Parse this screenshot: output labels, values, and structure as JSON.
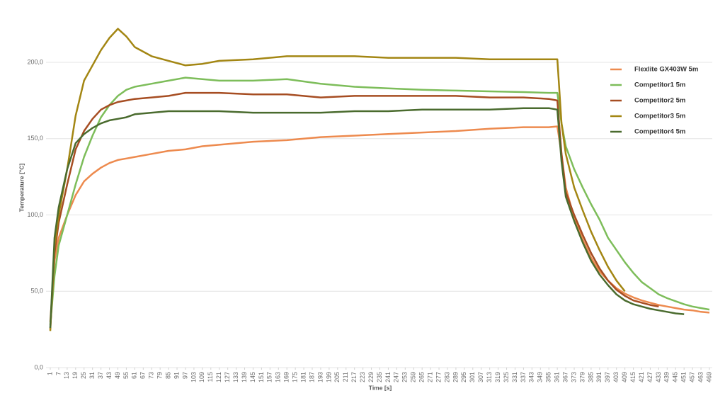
{
  "chart_data": {
    "type": "line",
    "x_label": "Time [s]",
    "y_label": "Temperature [°C]",
    "x": [
      1,
      4,
      7,
      13,
      19,
      25,
      31,
      37,
      43,
      49,
      55,
      61,
      73,
      85,
      97,
      109,
      121,
      145,
      169,
      193,
      217,
      241,
      265,
      289,
      313,
      337,
      355,
      361,
      364,
      367,
      373,
      379,
      385,
      391,
      397,
      403,
      409,
      415,
      421,
      427,
      433,
      439,
      445,
      451,
      457,
      463,
      469
    ],
    "series": [
      {
        "name": "Flexlite GX403W 5m",
        "color": "#ed8a4e",
        "values": [
          30,
          70,
          85,
          100,
          113,
          122,
          127,
          131,
          134,
          136,
          137,
          138,
          140,
          142,
          143,
          145,
          146,
          148,
          149,
          151,
          152,
          153,
          154,
          155,
          156.5,
          157.5,
          157.5,
          158,
          140,
          118,
          98,
          84,
          72,
          63,
          57,
          52,
          48.5,
          46,
          44,
          42.5,
          41,
          40,
          39,
          38,
          37.5,
          36.5,
          36
        ]
      },
      {
        "name": "Competitor1 5m",
        "color": "#7dbd5a",
        "values": [
          28,
          60,
          80,
          100,
          120,
          138,
          152,
          164,
          172,
          178,
          182,
          184,
          186,
          188,
          190,
          189,
          188,
          188,
          189,
          186,
          184,
          183,
          182,
          181.5,
          181,
          180.5,
          180,
          180,
          160,
          145,
          130,
          118,
          107,
          97,
          85,
          77,
          69,
          62,
          56,
          52,
          48,
          45.5,
          43.5,
          41.5,
          40,
          39,
          38
        ]
      },
      {
        "name": "Competitor2 5m",
        "color": "#a64d22",
        "values": [
          25,
          75,
          95,
          120,
          143,
          155,
          163,
          169,
          172,
          174,
          175,
          176,
          177,
          178,
          180,
          180,
          180,
          179,
          179,
          177,
          178,
          178,
          178,
          178,
          177,
          177,
          176,
          175,
          140,
          115,
          100,
          87,
          75,
          65,
          57,
          51,
          47,
          44,
          42.5,
          41,
          40,
          null,
          null,
          null,
          null,
          null,
          null
        ]
      },
      {
        "name": "Competitor3 5m",
        "color": "#a38613",
        "values": [
          24,
          80,
          100,
          130,
          165,
          188,
          198,
          208,
          216,
          222,
          217,
          210,
          204,
          201,
          198,
          199,
          201,
          202,
          204,
          204,
          204,
          203,
          203,
          203,
          202,
          202,
          202,
          202,
          160,
          140,
          118,
          103,
          89,
          77,
          66,
          57,
          50,
          null,
          null,
          null,
          null,
          null,
          null,
          null,
          null,
          null,
          null
        ]
      },
      {
        "name": "Competitor4 5m",
        "color": "#4a6b2e",
        "values": [
          26,
          85,
          105,
          130,
          147,
          153,
          157,
          160,
          162,
          163,
          164,
          166,
          167,
          168,
          168,
          168,
          168,
          167,
          167,
          167,
          168,
          168,
          169,
          169,
          169,
          170,
          170,
          169,
          135,
          112,
          96,
          82,
          70,
          61,
          54,
          48,
          44,
          41.5,
          40,
          38.5,
          37.5,
          36.5,
          35.5,
          35,
          null,
          null,
          null
        ]
      }
    ],
    "xlim": [
      1,
      469
    ],
    "xticks": [
      1,
      7,
      13,
      19,
      25,
      31,
      37,
      43,
      49,
      55,
      61,
      67,
      73,
      79,
      85,
      91,
      97,
      103,
      109,
      115,
      121,
      127,
      133,
      139,
      145,
      151,
      157,
      163,
      169,
      175,
      181,
      187,
      193,
      199,
      205,
      211,
      217,
      223,
      229,
      235,
      241,
      247,
      253,
      259,
      265,
      271,
      277,
      283,
      289,
      295,
      301,
      307,
      313,
      319,
      325,
      331,
      337,
      343,
      349,
      355,
      361,
      367,
      373,
      379,
      385,
      391,
      397,
      403,
      409,
      415,
      421,
      427,
      433,
      439,
      445,
      451,
      457,
      463,
      469
    ],
    "ylim": [
      0,
      235
    ],
    "yticks": [
      {
        "value": 0,
        "label": "0,0"
      },
      {
        "value": 50,
        "label": "50,0"
      },
      {
        "value": 100,
        "label": "100,0"
      },
      {
        "value": 150,
        "label": "150,0"
      },
      {
        "value": 200,
        "label": "200,0"
      }
    ],
    "grid": true,
    "legend": "right"
  }
}
